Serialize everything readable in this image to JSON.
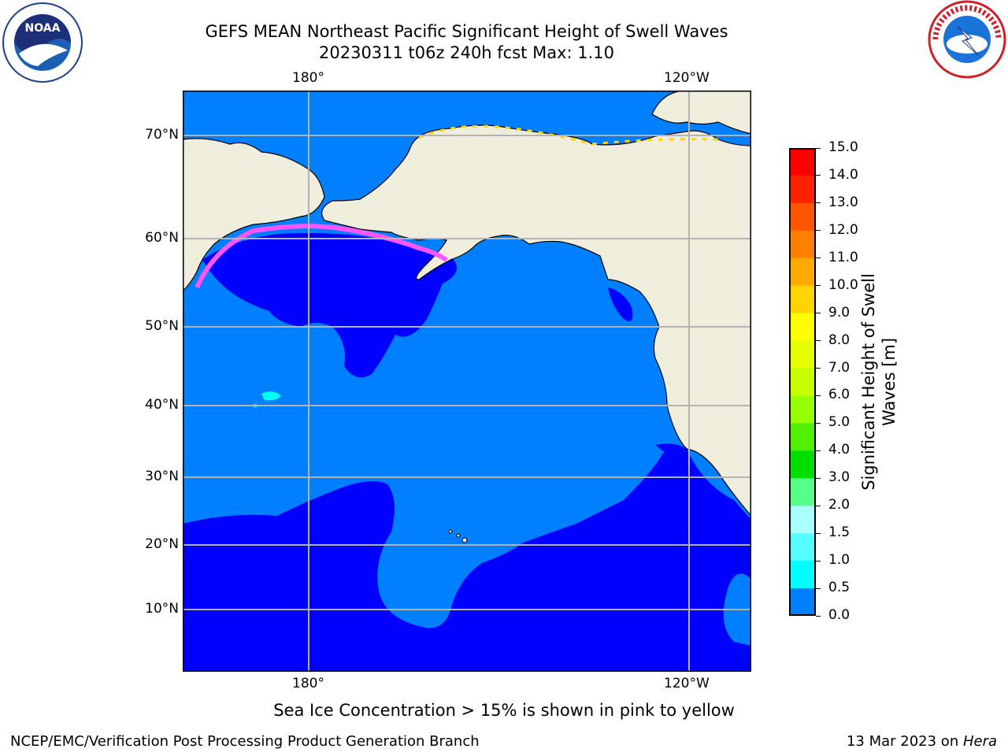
{
  "title": {
    "line1": "GEFS MEAN Northeast Pacific Significant Height of Swell Waves",
    "line2": "20230311 t06z 240h fcst   Max: 1.10"
  },
  "map": {
    "lon_labels_top": [
      "180°",
      "120°W"
    ],
    "lon_labels_bottom": [
      "180°",
      "120°W"
    ],
    "lat_labels": [
      "70°N",
      "60°N",
      "50°N",
      "40°N",
      "30°N",
      "20°N",
      "10°N"
    ],
    "grid": true,
    "colors": {
      "land": "#efeedc",
      "sea_0_0_5": "#0000ff",
      "sea_0_5_1_0": "#0080ff",
      "sea_1_0_1_5": "#00ffff",
      "sea_ice": "#ff55ff"
    }
  },
  "colorbar": {
    "label_line1": "Significant Height of Swell",
    "label_line2": "Waves [m]",
    "ticks": [
      "15.0",
      "14.0",
      "13.0",
      "12.0",
      "11.0",
      "10.0",
      "9.0",
      "8.0",
      "7.0",
      "6.0",
      "5.0",
      "4.0",
      "3.0",
      "2.0",
      "1.5",
      "1.0",
      "0.5",
      "0.0"
    ],
    "colors": [
      "#ff0000",
      "#ff2200",
      "#ff5500",
      "#ff8000",
      "#ffaa00",
      "#ffd400",
      "#ffff00",
      "#e6ff00",
      "#c8ff00",
      "#96ff00",
      "#50f000",
      "#00dd00",
      "#55ff88",
      "#aaffff",
      "#55ffff",
      "#00ffff",
      "#0080ff",
      "#0000ff"
    ]
  },
  "note": "Sea Ice Concentration > 15% is shown in pink to yellow",
  "footer": {
    "left": "NCEP/EMC/Verification Post Processing Product Generation Branch",
    "date": "13 Mar 2023 on ",
    "machine": "Hera"
  },
  "logos": {
    "noaa": "NOAA",
    "nws": "NATIONAL WEATHER SERVICE"
  }
}
